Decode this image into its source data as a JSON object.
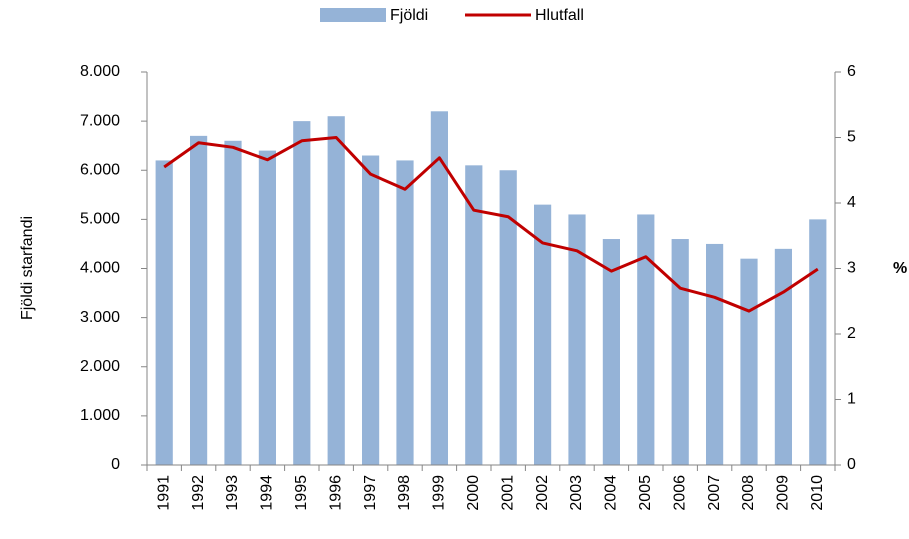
{
  "chart_data": {
    "type": "bar-line",
    "y_label": "Fjöldi starfandi",
    "y2_label": "%",
    "categories": [
      "1991",
      "1992",
      "1993",
      "1994",
      "1995",
      "1996",
      "1997",
      "1998",
      "1999",
      "2000",
      "2001",
      "2002",
      "2003",
      "2004",
      "2005",
      "2006",
      "2007",
      "2008",
      "2009",
      "2010"
    ],
    "series": [
      {
        "name": "Fjöldi",
        "type": "bar",
        "color": "#95b3d7",
        "values": [
          6200,
          6700,
          6600,
          6400,
          7000,
          7100,
          6300,
          6200,
          7200,
          6100,
          6000,
          5300,
          5100,
          4600,
          5100,
          4600,
          4500,
          4200,
          4400,
          5000
        ]
      },
      {
        "name": "Hlutfall",
        "type": "line",
        "axis": "y2",
        "color": "#c00000",
        "values": [
          4.55,
          4.92,
          4.85,
          4.66,
          4.95,
          5.0,
          4.44,
          4.21,
          4.69,
          3.89,
          3.79,
          3.39,
          3.27,
          2.96,
          3.18,
          2.7,
          2.56,
          2.35,
          2.64,
          2.99
        ]
      }
    ],
    "ylim": [
      0,
      8000
    ],
    "yticks": [
      0,
      {
        "value": 1000,
        "label": "1.000"
      },
      {
        "value": 2000,
        "label": "2.000"
      },
      {
        "value": 3000,
        "label": "3.000"
      },
      {
        "value": 4000,
        "label": "4.000"
      },
      {
        "value": 5000,
        "label": "5.000"
      },
      {
        "value": 6000,
        "label": "6.000"
      },
      {
        "value": 7000,
        "label": "7.000"
      },
      {
        "value": 8000,
        "label": "8.000"
      }
    ],
    "y2lim": [
      0,
      6
    ],
    "y2ticks": [
      0,
      1,
      2,
      3,
      4,
      5,
      6
    ],
    "legend": "top"
  }
}
